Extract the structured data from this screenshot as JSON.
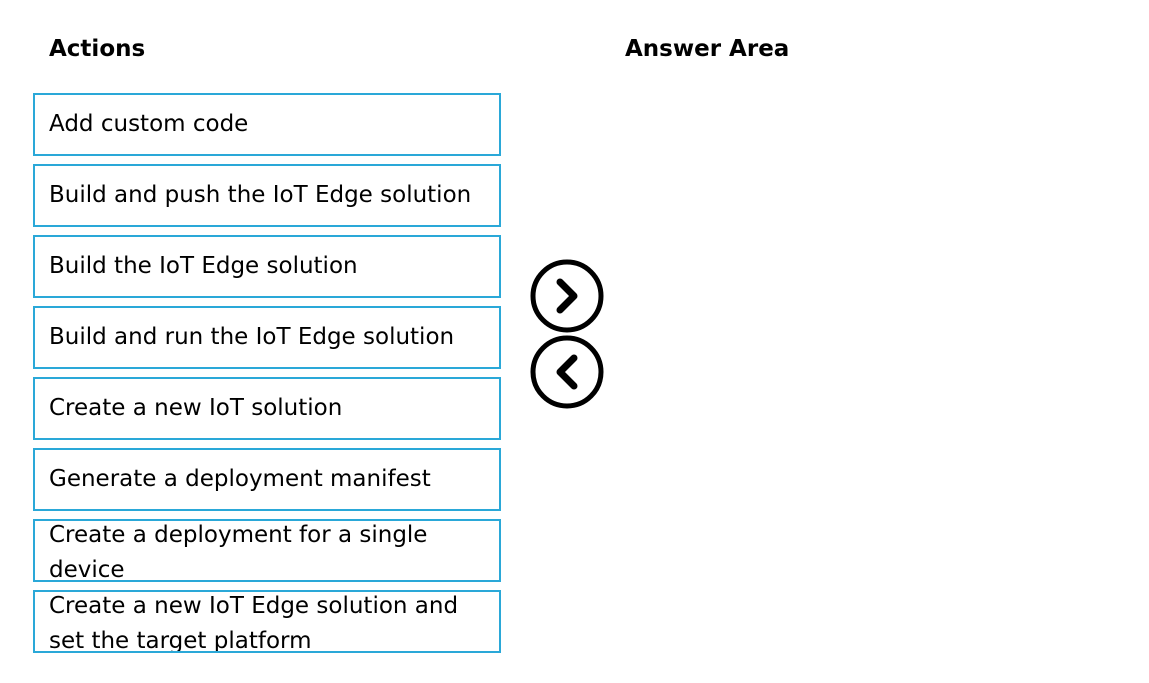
{
  "actions": {
    "heading": "Actions",
    "items": [
      {
        "label": "Add custom code"
      },
      {
        "label": "Build and push the IoT Edge solution"
      },
      {
        "label": "Build the IoT Edge solution"
      },
      {
        "label": "Build and run the IoT Edge solution"
      },
      {
        "label": "Create a new IoT solution"
      },
      {
        "label": "Generate a deployment manifest"
      },
      {
        "label": "Create a deployment for a single device"
      },
      {
        "label": "Create a new IoT Edge solution and set the target platform"
      }
    ]
  },
  "answer_area": {
    "heading": "Answer Area",
    "items": []
  },
  "controls": {
    "move_right_icon": "chevron-right-circle-icon",
    "move_left_icon": "chevron-left-circle-icon"
  },
  "colors": {
    "box_border": "#2aa8d8",
    "text": "#000000",
    "background": "#ffffff"
  }
}
